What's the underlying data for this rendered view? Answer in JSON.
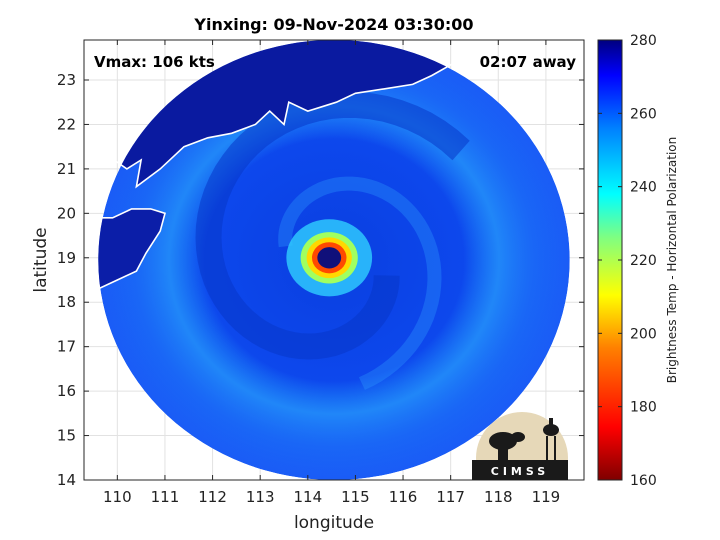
{
  "chart_data": {
    "type": "heatmap",
    "title": "Yinxing: 09-Nov-2024 03:30:00",
    "annotations": {
      "vmax": "Vmax: 106 kts",
      "away": "02:07 away"
    },
    "xlabel": "longitude",
    "ylabel": "latitude",
    "xlim": [
      109.3,
      119.8
    ],
    "ylim": [
      14.0,
      23.9
    ],
    "xticks": [
      110,
      111,
      112,
      113,
      114,
      115,
      116,
      117,
      118,
      119
    ],
    "yticks": [
      14,
      15,
      16,
      17,
      18,
      19,
      20,
      21,
      22,
      23
    ],
    "grid": true,
    "storm_center": {
      "lon": 114.45,
      "lat": 19.0
    },
    "eye_radius_deg": 0.25,
    "swath": {
      "center_lon": 114.55,
      "center_lat": 18.95,
      "radius_lon_deg": 4.95,
      "radius_lat_deg": 4.95
    },
    "colorbar": {
      "label": "Brightness Temp - Horizontal Polarization",
      "range": [
        160,
        280
      ],
      "ticks": [
        160,
        180,
        200,
        220,
        240,
        260,
        280
      ],
      "colormap": "jet"
    },
    "field_description_values": {
      "ocean_background_k": 262,
      "eye_k": 270,
      "eyewall_k": 205,
      "land_k": 270
    },
    "coastline_color": "#ffffff",
    "logo_text": "CIMSS"
  }
}
